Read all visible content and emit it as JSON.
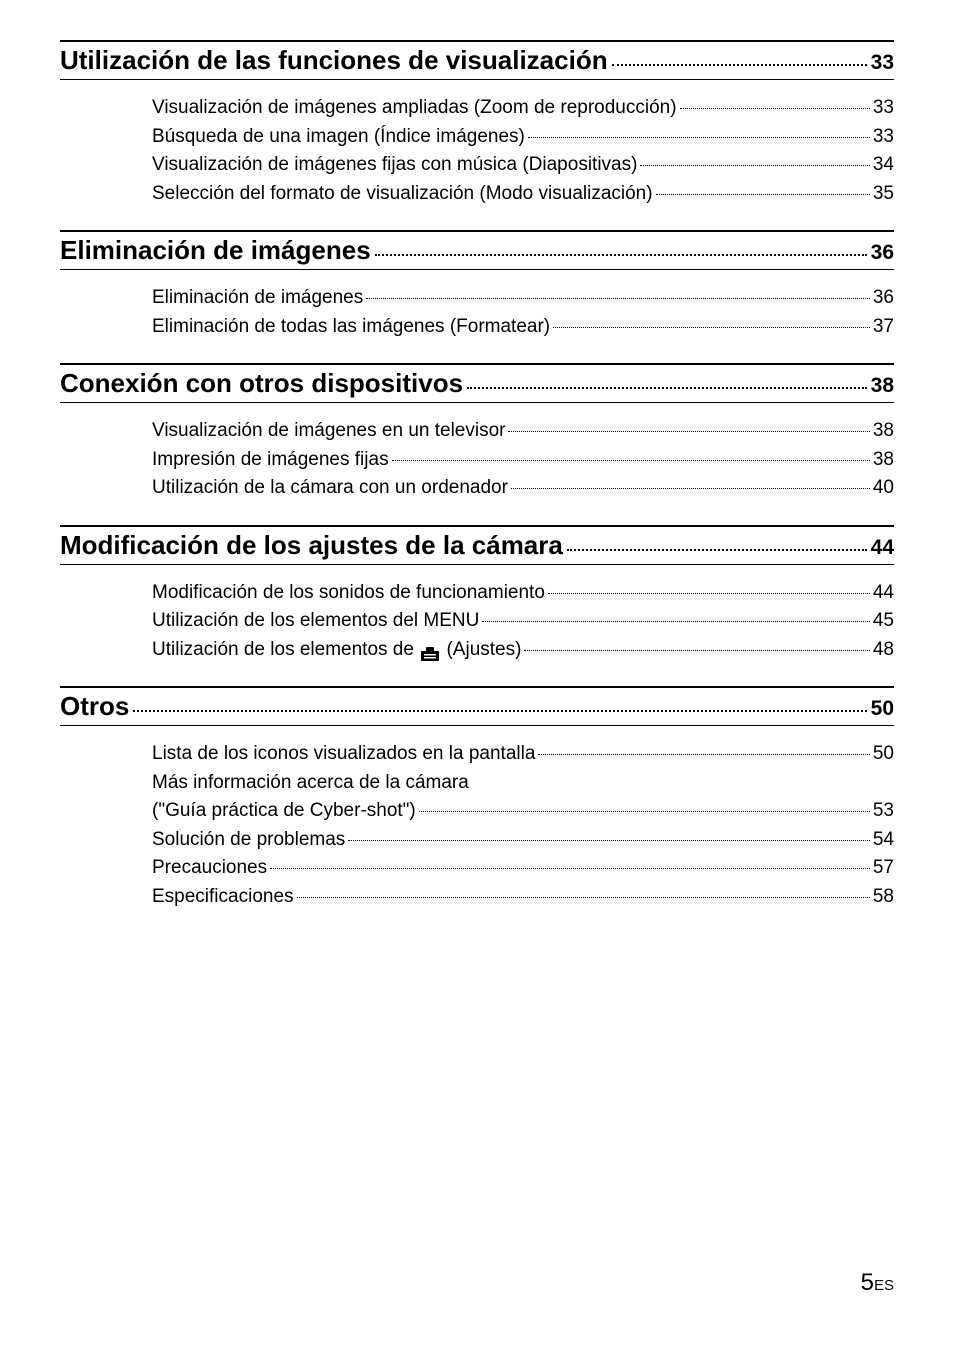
{
  "sections": [
    {
      "title": "Utilización de las funciones de visualización",
      "page": "33",
      "entries": [
        {
          "label": "Visualización de imágenes ampliadas (Zoom de reproducción)",
          "page": "33"
        },
        {
          "label": "Búsqueda de una imagen (Índice imágenes)",
          "page": "33"
        },
        {
          "label": "Visualización de imágenes fijas con música (Diapositivas)",
          "page": "34"
        },
        {
          "label": "Selección del formato de visualización (Modo visualización)",
          "page": "35"
        }
      ]
    },
    {
      "title": "Eliminación de imágenes",
      "page": "36",
      "entries": [
        {
          "label": "Eliminación de imágenes",
          "page": "36"
        },
        {
          "label": "Eliminación de todas las imágenes (Formatear)",
          "page": "37"
        }
      ]
    },
    {
      "title": "Conexión con otros dispositivos",
      "page": "38",
      "entries": [
        {
          "label": "Visualización de imágenes en un televisor",
          "page": "38"
        },
        {
          "label": "Impresión de imágenes fijas",
          "page": "38"
        },
        {
          "label": "Utilización de la cámara con un ordenador",
          "page": "40"
        }
      ]
    },
    {
      "title": "Modificación de los ajustes de la cámara",
      "page": "44",
      "entries": [
        {
          "label": "Modificación de los sonidos de funcionamiento",
          "page": "44"
        },
        {
          "label": "Utilización de los elementos del MENU",
          "page": "45"
        },
        {
          "label_prefix": "Utilización de los elementos de ",
          "label_suffix": " (Ajustes)",
          "has_icon": true,
          "page": "48"
        }
      ]
    },
    {
      "title": "Otros",
      "page": "50",
      "entries": [
        {
          "label": "Lista de los iconos visualizados en la pantalla",
          "page": "50"
        },
        {
          "label_line1": "Más información acerca de la cámara",
          "label_line2": "(\"Guía práctica de Cyber-shot\")",
          "multiline": true,
          "page": "53"
        },
        {
          "label": "Solución de problemas",
          "page": "54"
        },
        {
          "label": "Precauciones",
          "page": "57"
        },
        {
          "label": "Especificaciones",
          "page": "58"
        }
      ]
    }
  ],
  "page_number": "5",
  "page_suffix": "ES"
}
